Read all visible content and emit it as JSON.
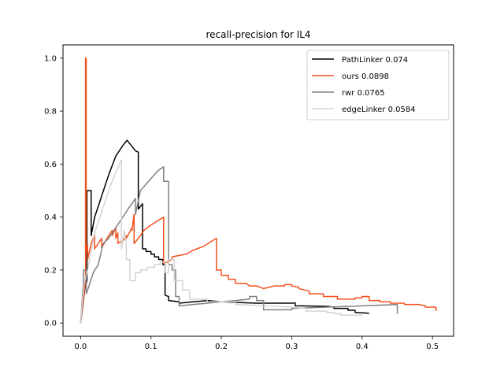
{
  "chart_data": {
    "type": "line",
    "title": "recall-precision for IL4",
    "xlabel": "",
    "ylabel": "",
    "xlim": [
      -0.025,
      0.53
    ],
    "ylim": [
      -0.05,
      1.05
    ],
    "xticks": [
      0.0,
      0.1,
      0.2,
      0.3,
      0.4,
      0.5
    ],
    "xtick_labels": [
      "0.0",
      "0.1",
      "0.2",
      "0.3",
      "0.4",
      "0.5"
    ],
    "yticks": [
      0.0,
      0.2,
      0.4,
      0.6,
      0.8,
      1.0
    ],
    "ytick_labels": [
      "0.0",
      "0.2",
      "0.4",
      "0.6",
      "0.8",
      "1.0"
    ],
    "grid": false,
    "legend_position": "top-right",
    "series": [
      {
        "name": "PathLinker 0.074",
        "color": "#000000",
        "points": [
          [
            0.0,
            0.0
          ],
          [
            0.003,
            0.06
          ],
          [
            0.006,
            0.13
          ],
          [
            0.009,
            0.16
          ],
          [
            0.009,
            0.5
          ],
          [
            0.015,
            0.5
          ],
          [
            0.015,
            0.33
          ],
          [
            0.02,
            0.4
          ],
          [
            0.03,
            0.48
          ],
          [
            0.04,
            0.56
          ],
          [
            0.05,
            0.63
          ],
          [
            0.06,
            0.67
          ],
          [
            0.066,
            0.69
          ],
          [
            0.072,
            0.67
          ],
          [
            0.078,
            0.65
          ],
          [
            0.082,
            0.645
          ],
          [
            0.082,
            0.43
          ],
          [
            0.088,
            0.45
          ],
          [
            0.088,
            0.28
          ],
          [
            0.093,
            0.28
          ],
          [
            0.093,
            0.27
          ],
          [
            0.1,
            0.27
          ],
          [
            0.1,
            0.26
          ],
          [
            0.105,
            0.26
          ],
          [
            0.105,
            0.25
          ],
          [
            0.111,
            0.25
          ],
          [
            0.111,
            0.24
          ],
          [
            0.117,
            0.24
          ],
          [
            0.117,
            0.22
          ],
          [
            0.12,
            0.22
          ],
          [
            0.12,
            0.105
          ],
          [
            0.125,
            0.1
          ],
          [
            0.125,
            0.085
          ],
          [
            0.14,
            0.08
          ],
          [
            0.14,
            0.075
          ],
          [
            0.16,
            0.08
          ],
          [
            0.18,
            0.085
          ],
          [
            0.2,
            0.08
          ],
          [
            0.22,
            0.078
          ],
          [
            0.25,
            0.075
          ],
          [
            0.3,
            0.075
          ],
          [
            0.305,
            0.076
          ],
          [
            0.305,
            0.065
          ],
          [
            0.35,
            0.063
          ],
          [
            0.36,
            0.06
          ],
          [
            0.36,
            0.055
          ],
          [
            0.38,
            0.055
          ],
          [
            0.38,
            0.048
          ],
          [
            0.39,
            0.048
          ],
          [
            0.39,
            0.04
          ],
          [
            0.41,
            0.037
          ]
        ]
      },
      {
        "name": "ours 0.0898",
        "color": "#f4511e",
        "points": [
          [
            0.0,
            0.0
          ],
          [
            0.007,
            0.16
          ],
          [
            0.007,
            1.0
          ],
          [
            0.008,
            1.0
          ],
          [
            0.008,
            0.27
          ],
          [
            0.01,
            0.29
          ],
          [
            0.01,
            0.24
          ],
          [
            0.015,
            0.3
          ],
          [
            0.018,
            0.32
          ],
          [
            0.02,
            0.335
          ],
          [
            0.02,
            0.28
          ],
          [
            0.025,
            0.3
          ],
          [
            0.03,
            0.32
          ],
          [
            0.03,
            0.285
          ],
          [
            0.04,
            0.33
          ],
          [
            0.045,
            0.35
          ],
          [
            0.045,
            0.33
          ],
          [
            0.05,
            0.36
          ],
          [
            0.05,
            0.32
          ],
          [
            0.053,
            0.34
          ],
          [
            0.053,
            0.3
          ],
          [
            0.058,
            0.31
          ],
          [
            0.058,
            0.3
          ],
          [
            0.065,
            0.33
          ],
          [
            0.065,
            0.32
          ],
          [
            0.073,
            0.36
          ],
          [
            0.073,
            0.35
          ],
          [
            0.076,
            0.41
          ],
          [
            0.076,
            0.3
          ],
          [
            0.085,
            0.33
          ],
          [
            0.09,
            0.35
          ],
          [
            0.1,
            0.37
          ],
          [
            0.115,
            0.395
          ],
          [
            0.118,
            0.4
          ],
          [
            0.118,
            0.225
          ],
          [
            0.123,
            0.23
          ],
          [
            0.13,
            0.24
          ],
          [
            0.13,
            0.25
          ],
          [
            0.14,
            0.255
          ],
          [
            0.15,
            0.26
          ],
          [
            0.16,
            0.275
          ],
          [
            0.175,
            0.29
          ],
          [
            0.19,
            0.315
          ],
          [
            0.193,
            0.32
          ],
          [
            0.193,
            0.2
          ],
          [
            0.2,
            0.2
          ],
          [
            0.2,
            0.18
          ],
          [
            0.21,
            0.18
          ],
          [
            0.21,
            0.165
          ],
          [
            0.22,
            0.165
          ],
          [
            0.22,
            0.15
          ],
          [
            0.235,
            0.15
          ],
          [
            0.24,
            0.14
          ],
          [
            0.25,
            0.14
          ],
          [
            0.26,
            0.13
          ],
          [
            0.275,
            0.14
          ],
          [
            0.29,
            0.14
          ],
          [
            0.29,
            0.145
          ],
          [
            0.3,
            0.145
          ],
          [
            0.3,
            0.14
          ],
          [
            0.31,
            0.135
          ],
          [
            0.31,
            0.13
          ],
          [
            0.325,
            0.12
          ],
          [
            0.325,
            0.11
          ],
          [
            0.345,
            0.11
          ],
          [
            0.345,
            0.1
          ],
          [
            0.365,
            0.1
          ],
          [
            0.365,
            0.09
          ],
          [
            0.39,
            0.09
          ],
          [
            0.39,
            0.095
          ],
          [
            0.4,
            0.095
          ],
          [
            0.4,
            0.1
          ],
          [
            0.41,
            0.1
          ],
          [
            0.41,
            0.085
          ],
          [
            0.425,
            0.085
          ],
          [
            0.425,
            0.08
          ],
          [
            0.44,
            0.08
          ],
          [
            0.44,
            0.075
          ],
          [
            0.46,
            0.075
          ],
          [
            0.46,
            0.07
          ],
          [
            0.48,
            0.07
          ],
          [
            0.49,
            0.065
          ],
          [
            0.49,
            0.06
          ],
          [
            0.505,
            0.06
          ],
          [
            0.505,
            0.045
          ]
        ]
      },
      {
        "name": "rwr 0.0765",
        "color": "#808080",
        "points": [
          [
            0.0,
            0.0
          ],
          [
            0.004,
            0.15
          ],
          [
            0.004,
            0.2
          ],
          [
            0.008,
            0.2
          ],
          [
            0.008,
            0.11
          ],
          [
            0.012,
            0.14
          ],
          [
            0.018,
            0.19
          ],
          [
            0.025,
            0.22
          ],
          [
            0.032,
            0.3
          ],
          [
            0.04,
            0.32
          ],
          [
            0.05,
            0.36
          ],
          [
            0.06,
            0.4
          ],
          [
            0.07,
            0.44
          ],
          [
            0.078,
            0.47
          ],
          [
            0.078,
            0.41
          ],
          [
            0.085,
            0.5
          ],
          [
            0.095,
            0.53
          ],
          [
            0.11,
            0.575
          ],
          [
            0.118,
            0.59
          ],
          [
            0.118,
            0.535
          ],
          [
            0.125,
            0.535
          ],
          [
            0.125,
            0.22
          ],
          [
            0.13,
            0.22
          ],
          [
            0.13,
            0.2
          ],
          [
            0.135,
            0.2
          ],
          [
            0.135,
            0.1
          ],
          [
            0.14,
            0.1
          ],
          [
            0.14,
            0.065
          ],
          [
            0.16,
            0.07
          ],
          [
            0.18,
            0.075
          ],
          [
            0.2,
            0.08
          ],
          [
            0.22,
            0.085
          ],
          [
            0.24,
            0.09
          ],
          [
            0.24,
            0.1
          ],
          [
            0.25,
            0.1
          ],
          [
            0.25,
            0.085
          ],
          [
            0.26,
            0.085
          ],
          [
            0.26,
            0.05
          ],
          [
            0.3,
            0.05
          ],
          [
            0.3,
            0.055
          ],
          [
            0.35,
            0.06
          ],
          [
            0.4,
            0.065
          ],
          [
            0.45,
            0.07
          ],
          [
            0.45,
            0.035
          ]
        ]
      },
      {
        "name": "edgeLinker 0.0584",
        "color": "#d3d3d3",
        "points": [
          [
            0.0,
            0.0
          ],
          [
            0.005,
            0.15
          ],
          [
            0.01,
            0.2
          ],
          [
            0.015,
            0.27
          ],
          [
            0.02,
            0.34
          ],
          [
            0.03,
            0.42
          ],
          [
            0.04,
            0.5
          ],
          [
            0.05,
            0.57
          ],
          [
            0.058,
            0.615
          ],
          [
            0.058,
            0.28
          ],
          [
            0.062,
            0.35
          ],
          [
            0.065,
            0.3
          ],
          [
            0.065,
            0.24
          ],
          [
            0.07,
            0.24
          ],
          [
            0.07,
            0.16
          ],
          [
            0.078,
            0.16
          ],
          [
            0.078,
            0.19
          ],
          [
            0.085,
            0.19
          ],
          [
            0.085,
            0.2
          ],
          [
            0.095,
            0.2
          ],
          [
            0.095,
            0.21
          ],
          [
            0.105,
            0.21
          ],
          [
            0.105,
            0.22
          ],
          [
            0.113,
            0.22
          ],
          [
            0.113,
            0.23
          ],
          [
            0.12,
            0.23
          ],
          [
            0.12,
            0.19
          ],
          [
            0.125,
            0.19
          ],
          [
            0.125,
            0.24
          ],
          [
            0.133,
            0.24
          ],
          [
            0.133,
            0.16
          ],
          [
            0.145,
            0.16
          ],
          [
            0.145,
            0.125
          ],
          [
            0.155,
            0.125
          ],
          [
            0.155,
            0.09
          ],
          [
            0.18,
            0.09
          ],
          [
            0.18,
            0.08
          ],
          [
            0.22,
            0.08
          ],
          [
            0.22,
            0.07
          ],
          [
            0.26,
            0.065
          ],
          [
            0.3,
            0.06
          ],
          [
            0.32,
            0.055
          ],
          [
            0.32,
            0.045
          ],
          [
            0.35,
            0.045
          ],
          [
            0.35,
            0.04
          ],
          [
            0.36,
            0.04
          ],
          [
            0.36,
            0.035
          ],
          [
            0.37,
            0.035
          ],
          [
            0.37,
            0.03
          ],
          [
            0.4,
            0.03
          ]
        ]
      }
    ]
  }
}
